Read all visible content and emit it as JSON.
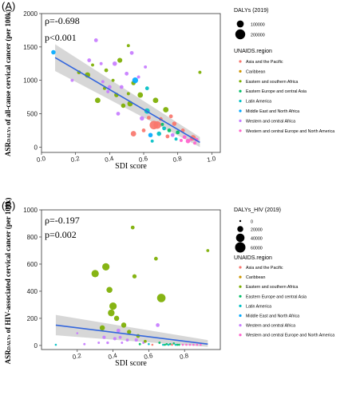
{
  "colors": {
    "Asia and the Pacific": "#F8766D",
    "Caribbean": "#CD9600",
    "Eastern and southern Africa": "#7CAE00",
    "Eastern Europe and central Asia": "#00BE67",
    "Latin America": "#00BFC4",
    "Middle East and North Africa": "#00A9FF",
    "Western and central Africa": "#C77CFF",
    "Western and central Europe and North America": "#FF61CC"
  },
  "fit_line_color": "#3366DD",
  "chart_data": [
    {
      "type": "scatter",
      "panel_label": "(A)",
      "stats": {
        "rho": "ρ=-0.698",
        "p": "p<0.001"
      },
      "xlabel": "SDI score",
      "ylabel_prefix": "ASR",
      "ylabel_sub": "DALYs",
      "ylabel_suffix": " of all-cause cervical cancer (per 100k)",
      "xlim": [
        0.0,
        1.05
      ],
      "ylim": [
        -80,
        2000
      ],
      "xticks": [
        "0.0",
        "0.2",
        "0.4",
        "0.6",
        "0.8",
        "1.0"
      ],
      "xtick_values": [
        0.0,
        0.2,
        0.4,
        0.6,
        0.8,
        1.0
      ],
      "yticks": [
        "0",
        "500",
        "1000",
        "1500",
        "2000"
      ],
      "ytick_values": [
        0,
        500,
        1000,
        1500,
        2000
      ],
      "fit": {
        "x": [
          0.08,
          0.93
        ],
        "y": [
          1340,
          70
        ],
        "band_low": [
          1140,
          0
        ],
        "band_high": [
          1540,
          150
        ]
      },
      "size_legend": {
        "title": "DALYs (2019)",
        "labels": [
          "100000",
          "200000"
        ],
        "values": [
          100000,
          200000
        ]
      },
      "region_legend_title": "UNAIDS.region",
      "regions": [
        "Asia and the Pacific",
        "Caribbean",
        "Eastern and southern Africa",
        "Eastern Europe and central Asia",
        "Latin America",
        "Middle East and North Africa",
        "Western and central Africa",
        "Western and central Europe and North America"
      ],
      "points": [
        {
          "x": 0.07,
          "y": 1420,
          "size": 40000,
          "region": "Middle East and North Africa"
        },
        {
          "x": 0.18,
          "y": 1000,
          "size": 20000,
          "region": "Western and central Africa"
        },
        {
          "x": 0.22,
          "y": 1120,
          "size": 30000,
          "region": "Eastern and southern Africa"
        },
        {
          "x": 0.27,
          "y": 1080,
          "size": 60000,
          "region": "Eastern and southern Africa"
        },
        {
          "x": 0.28,
          "y": 1300,
          "size": 30000,
          "region": "Western and central Africa"
        },
        {
          "x": 0.3,
          "y": 1230,
          "size": 20000,
          "region": "Eastern and southern Africa"
        },
        {
          "x": 0.32,
          "y": 1600,
          "size": 30000,
          "region": "Western and central Africa"
        },
        {
          "x": 0.33,
          "y": 700,
          "size": 60000,
          "region": "Eastern and southern Africa"
        },
        {
          "x": 0.35,
          "y": 1250,
          "size": 20000,
          "region": "Western and central Africa"
        },
        {
          "x": 0.36,
          "y": 980,
          "size": 20000,
          "region": "Western and central Africa"
        },
        {
          "x": 0.37,
          "y": 880,
          "size": 20000,
          "region": "Eastern and southern Africa"
        },
        {
          "x": 0.38,
          "y": 1150,
          "size": 30000,
          "region": "Eastern and southern Africa"
        },
        {
          "x": 0.39,
          "y": 830,
          "size": 20000,
          "region": "Western and central Africa"
        },
        {
          "x": 0.4,
          "y": 900,
          "size": 30000,
          "region": "Western and central Africa"
        },
        {
          "x": 0.42,
          "y": 1000,
          "size": 20000,
          "region": "Eastern and southern Africa"
        },
        {
          "x": 0.43,
          "y": 1250,
          "size": 40000,
          "region": "Western and central Africa"
        },
        {
          "x": 0.44,
          "y": 780,
          "size": 40000,
          "region": "Eastern and southern Africa"
        },
        {
          "x": 0.45,
          "y": 500,
          "size": 30000,
          "region": "Western and central Africa"
        },
        {
          "x": 0.46,
          "y": 1300,
          "size": 50000,
          "region": "Eastern and southern Africa"
        },
        {
          "x": 0.47,
          "y": 900,
          "size": 30000,
          "region": "Western and central Africa"
        },
        {
          "x": 0.48,
          "y": 620,
          "size": 40000,
          "region": "Eastern and southern Africa"
        },
        {
          "x": 0.5,
          "y": 1100,
          "size": 30000,
          "region": "Western and central Africa"
        },
        {
          "x": 0.51,
          "y": 1520,
          "size": 20000,
          "region": "Eastern and southern Africa"
        },
        {
          "x": 0.51,
          "y": 800,
          "size": 20000,
          "region": "Eastern and southern Africa"
        },
        {
          "x": 0.52,
          "y": 650,
          "size": 60000,
          "region": "Eastern and southern Africa"
        },
        {
          "x": 0.53,
          "y": 1410,
          "size": 30000,
          "region": "Western and central Africa"
        },
        {
          "x": 0.54,
          "y": 960,
          "size": 40000,
          "region": "Eastern and southern Africa"
        },
        {
          "x": 0.54,
          "y": 200,
          "size": 60000,
          "region": "Asia and the Pacific"
        },
        {
          "x": 0.55,
          "y": 1000,
          "size": 70000,
          "region": "Middle East and North Africa"
        },
        {
          "x": 0.57,
          "y": 1050,
          "size": 20000,
          "region": "Western and central Africa"
        },
        {
          "x": 0.58,
          "y": 780,
          "size": 60000,
          "region": "Eastern and southern Africa"
        },
        {
          "x": 0.59,
          "y": 430,
          "size": 40000,
          "region": "Western and central Africa"
        },
        {
          "x": 0.6,
          "y": 250,
          "size": 30000,
          "region": "Asia and the Pacific"
        },
        {
          "x": 0.61,
          "y": 1200,
          "size": 20000,
          "region": "Western and central Africa"
        },
        {
          "x": 0.62,
          "y": 540,
          "size": 60000,
          "region": "Latin America"
        },
        {
          "x": 0.62,
          "y": 880,
          "size": 30000,
          "region": "Latin America"
        },
        {
          "x": 0.63,
          "y": 440,
          "size": 30000,
          "region": "Asia and the Pacific"
        },
        {
          "x": 0.64,
          "y": 180,
          "size": 40000,
          "region": "Middle East and North Africa"
        },
        {
          "x": 0.65,
          "y": 90,
          "size": 20000,
          "region": "Latin America"
        },
        {
          "x": 0.66,
          "y": 330,
          "size": 150000,
          "region": "Asia and the Pacific"
        },
        {
          "x": 0.67,
          "y": 700,
          "size": 60000,
          "region": "Eastern and southern Africa"
        },
        {
          "x": 0.68,
          "y": 330,
          "size": 120000,
          "region": "Asia and the Pacific"
        },
        {
          "x": 0.69,
          "y": 200,
          "size": 40000,
          "region": "Latin America"
        },
        {
          "x": 0.7,
          "y": 420,
          "size": 30000,
          "region": "Asia and the Pacific"
        },
        {
          "x": 0.71,
          "y": 340,
          "size": 20000,
          "region": "Eastern Europe and central Asia"
        },
        {
          "x": 0.72,
          "y": 280,
          "size": 30000,
          "region": "Latin America"
        },
        {
          "x": 0.73,
          "y": 560,
          "size": 60000,
          "region": "Eastern and southern Africa"
        },
        {
          "x": 0.74,
          "y": 160,
          "size": 30000,
          "region": "Asia and the Pacific"
        },
        {
          "x": 0.75,
          "y": 250,
          "size": 30000,
          "region": "Eastern Europe and central Asia"
        },
        {
          "x": 0.76,
          "y": 460,
          "size": 30000,
          "region": "Asia and the Pacific"
        },
        {
          "x": 0.77,
          "y": 180,
          "size": 30000,
          "region": "Western and central Africa"
        },
        {
          "x": 0.78,
          "y": 350,
          "size": 40000,
          "region": "Asia and the Pacific"
        },
        {
          "x": 0.79,
          "y": 120,
          "size": 20000,
          "region": "Latin America"
        },
        {
          "x": 0.8,
          "y": 220,
          "size": 30000,
          "region": "Eastern Europe and central Asia"
        },
        {
          "x": 0.82,
          "y": 100,
          "size": 20000,
          "region": "Western and central Europe and North America"
        },
        {
          "x": 0.83,
          "y": 250,
          "size": 30000,
          "region": "Asia and the Pacific"
        },
        {
          "x": 0.84,
          "y": 150,
          "size": 30000,
          "region": "Western and central Europe and North America"
        },
        {
          "x": 0.86,
          "y": 90,
          "size": 40000,
          "region": "Western and central Europe and North America"
        },
        {
          "x": 0.88,
          "y": 120,
          "size": 30000,
          "region": "Western and central Europe and North America"
        },
        {
          "x": 0.89,
          "y": 140,
          "size": 60000,
          "region": "Asia and the Pacific"
        },
        {
          "x": 0.9,
          "y": 60,
          "size": 20000,
          "region": "Western and central Europe and North America"
        },
        {
          "x": 0.91,
          "y": 110,
          "size": 30000,
          "region": "Western and central Europe and North America"
        },
        {
          "x": 0.93,
          "y": 1120,
          "size": 20000,
          "region": "Eastern and southern Africa"
        }
      ]
    },
    {
      "type": "scatter",
      "panel_label": "(B)",
      "stats": {
        "rho": "ρ=-0.197",
        "p": "p=0.002"
      },
      "xlabel": "SDI score",
      "ylabel_prefix": "ASR",
      "ylabel_sub": "DALYs",
      "ylabel_suffix": " of HIV-associated cervical cancer (per 100k)",
      "xlim": [
        0.0,
        1.0
      ],
      "ylim": [
        -30,
        1000
      ],
      "xticks": [
        "0.2",
        "0.4",
        "0.6",
        "0.8"
      ],
      "xtick_values": [
        0.2,
        0.4,
        0.6,
        0.8
      ],
      "yticks": [
        "0",
        "200",
        "400",
        "600",
        "800",
        "1000"
      ],
      "ytick_values": [
        0,
        200,
        400,
        600,
        800,
        1000
      ],
      "fit": {
        "x": [
          0.08,
          0.93
        ],
        "y": [
          150,
          10
        ],
        "band_low": [
          75,
          -10
        ],
        "band_high": [
          225,
          40
        ]
      },
      "size_legend": {
        "title": "DALYs_HIV (2019)",
        "labels": [
          "0",
          "20000",
          "40000",
          "60000"
        ],
        "values": [
          0,
          20000,
          40000,
          60000
        ]
      },
      "region_legend_title": "UNAIDS.region",
      "regions": [
        "Asia and the Pacific",
        "Caribbean",
        "Eastern and southern Africa",
        "Eastern Europe and central Asia",
        "Latin America",
        "Middle East and North Africa",
        "Western and central Africa",
        "Western and central Europe and North America"
      ],
      "points": [
        {
          "x": 0.08,
          "y": 5,
          "size": 2000,
          "region": "Latin America"
        },
        {
          "x": 0.2,
          "y": 90,
          "size": 2000,
          "region": "Western and central Africa"
        },
        {
          "x": 0.24,
          "y": 10,
          "size": 3000,
          "region": "Western and central Africa"
        },
        {
          "x": 0.3,
          "y": 530,
          "size": 30000,
          "region": "Eastern and southern Africa"
        },
        {
          "x": 0.32,
          "y": 20,
          "size": 3000,
          "region": "Western and central Africa"
        },
        {
          "x": 0.34,
          "y": 130,
          "size": 15000,
          "region": "Eastern and southern Africa"
        },
        {
          "x": 0.35,
          "y": 60,
          "size": 6000,
          "region": "Western and central Africa"
        },
        {
          "x": 0.36,
          "y": 580,
          "size": 30000,
          "region": "Eastern and southern Africa"
        },
        {
          "x": 0.37,
          "y": 20,
          "size": 4000,
          "region": "Western and central Africa"
        },
        {
          "x": 0.38,
          "y": 410,
          "size": 20000,
          "region": "Eastern and southern Africa"
        },
        {
          "x": 0.39,
          "y": 240,
          "size": 25000,
          "region": "Eastern and southern Africa"
        },
        {
          "x": 0.4,
          "y": 290,
          "size": 30000,
          "region": "Eastern and southern Africa"
        },
        {
          "x": 0.41,
          "y": 50,
          "size": 6000,
          "region": "Western and central Africa"
        },
        {
          "x": 0.42,
          "y": 200,
          "size": 15000,
          "region": "Eastern and southern Africa"
        },
        {
          "x": 0.43,
          "y": 110,
          "size": 8000,
          "region": "Western and central Africa"
        },
        {
          "x": 0.44,
          "y": 60,
          "size": 5000,
          "region": "Western and central Africa"
        },
        {
          "x": 0.45,
          "y": 20,
          "size": 3000,
          "region": "Western and central Africa"
        },
        {
          "x": 0.46,
          "y": 150,
          "size": 15000,
          "region": "Eastern and southern Africa"
        },
        {
          "x": 0.48,
          "y": 40,
          "size": 5000,
          "region": "Western and central Africa"
        },
        {
          "x": 0.49,
          "y": 100,
          "size": 10000,
          "region": "Eastern and southern Africa"
        },
        {
          "x": 0.51,
          "y": 870,
          "size": 8000,
          "region": "Eastern and southern Africa"
        },
        {
          "x": 0.52,
          "y": 510,
          "size": 10000,
          "region": "Eastern and southern Africa"
        },
        {
          "x": 0.53,
          "y": 40,
          "size": 6000,
          "region": "Western and central Africa"
        },
        {
          "x": 0.54,
          "y": 70,
          "size": 8000,
          "region": "Eastern and southern Africa"
        },
        {
          "x": 0.55,
          "y": 10,
          "size": 3000,
          "region": "Eastern Europe and central Asia"
        },
        {
          "x": 0.57,
          "y": 20,
          "size": 3000,
          "region": "Western and central Africa"
        },
        {
          "x": 0.58,
          "y": 30,
          "size": 5000,
          "region": "Eastern and southern Africa"
        },
        {
          "x": 0.6,
          "y": 10,
          "size": 2000,
          "region": "Latin America"
        },
        {
          "x": 0.62,
          "y": 5,
          "size": 2000,
          "region": "Asia and the Pacific"
        },
        {
          "x": 0.64,
          "y": 640,
          "size": 8000,
          "region": "Eastern and southern Africa"
        },
        {
          "x": 0.65,
          "y": 150,
          "size": 8000,
          "region": "Western and central Africa"
        },
        {
          "x": 0.66,
          "y": 20,
          "size": 3000,
          "region": "Eastern Europe and central Asia"
        },
        {
          "x": 0.67,
          "y": 350,
          "size": 40000,
          "region": "Eastern and southern Africa"
        },
        {
          "x": 0.68,
          "y": 5,
          "size": 2000,
          "region": "Latin America"
        },
        {
          "x": 0.69,
          "y": 5,
          "size": 2000,
          "region": "Eastern Europe and central Asia"
        },
        {
          "x": 0.7,
          "y": 10,
          "size": 2000,
          "region": "Eastern Europe and central Asia"
        },
        {
          "x": 0.71,
          "y": 5,
          "size": 2000,
          "region": "Latin America"
        },
        {
          "x": 0.72,
          "y": 10,
          "size": 2000,
          "region": "Eastern Europe and central Asia"
        },
        {
          "x": 0.73,
          "y": 5,
          "size": 2000,
          "region": "Asia and the Pacific"
        },
        {
          "x": 0.74,
          "y": 15,
          "size": 2000,
          "region": "Eastern Europe and central Asia"
        },
        {
          "x": 0.75,
          "y": 5,
          "size": 2000,
          "region": "Latin America"
        },
        {
          "x": 0.76,
          "y": 5,
          "size": 2000,
          "region": "Eastern Europe and central Asia"
        },
        {
          "x": 0.77,
          "y": 5,
          "size": 2000,
          "region": "Eastern Europe and central Asia"
        },
        {
          "x": 0.79,
          "y": 5,
          "size": 2000,
          "region": "Western and central Europe and North America"
        },
        {
          "x": 0.81,
          "y": 5,
          "size": 2000,
          "region": "Western and central Europe and North America"
        },
        {
          "x": 0.83,
          "y": 5,
          "size": 2000,
          "region": "Western and central Europe and North America"
        },
        {
          "x": 0.85,
          "y": 5,
          "size": 2000,
          "region": "Western and central Europe and North America"
        },
        {
          "x": 0.87,
          "y": 5,
          "size": 2000,
          "region": "Western and central Europe and North America"
        },
        {
          "x": 0.89,
          "y": 5,
          "size": 2000,
          "region": "Western and central Europe and North America"
        },
        {
          "x": 0.93,
          "y": 700,
          "size": 5000,
          "region": "Eastern and southern Africa"
        }
      ]
    }
  ]
}
